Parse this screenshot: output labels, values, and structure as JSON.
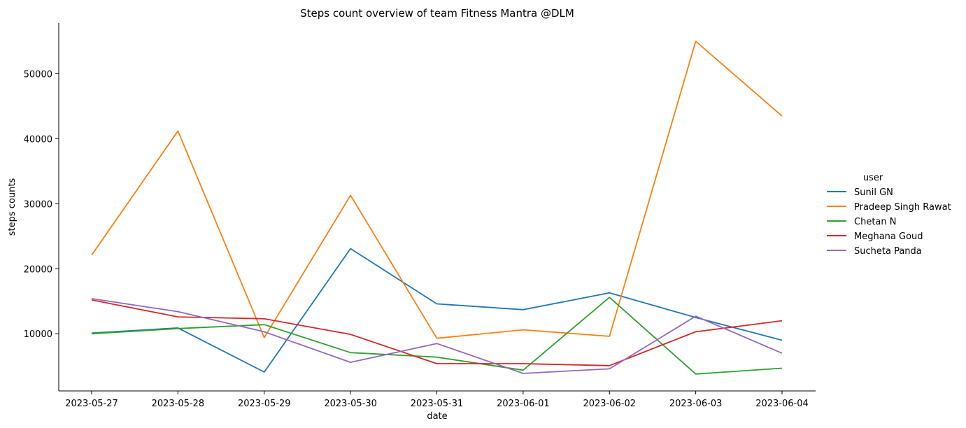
{
  "chart_data": {
    "type": "line",
    "title": "Steps count overview of team Fitness Mantra @DLM",
    "xlabel": "date",
    "ylabel": "steps counts",
    "x": [
      "2023-05-27",
      "2023-05-28",
      "2023-05-29",
      "2023-05-30",
      "2023-05-31",
      "2023-06-01",
      "2023-06-02",
      "2023-06-03",
      "2023-06-04"
    ],
    "ylim": [
      1200,
      57800
    ],
    "yticks": [
      10000,
      20000,
      30000,
      40000,
      50000
    ],
    "grid": false,
    "legend_title": "user",
    "legend_position": "right",
    "series": [
      {
        "name": "Sunil GN",
        "color": "#1f77b4",
        "values": [
          10100,
          10900,
          4100,
          23100,
          14600,
          13700,
          16300,
          12500,
          9000
        ]
      },
      {
        "name": "Pradeep Singh Rawat",
        "color": "#ff7f0e",
        "values": [
          22100,
          41200,
          9400,
          31300,
          9300,
          10600,
          9600,
          55000,
          43500
        ]
      },
      {
        "name": "Chetan N",
        "color": "#2ca02c",
        "values": [
          10000,
          10800,
          11400,
          7100,
          6400,
          4400,
          15600,
          3800,
          4700
        ]
      },
      {
        "name": "Meghana Goud",
        "color": "#d62728",
        "values": [
          15200,
          12600,
          12300,
          9900,
          5400,
          5400,
          5100,
          10300,
          12000
        ]
      },
      {
        "name": "Sucheta Panda",
        "color": "#9467bd",
        "values": [
          15400,
          13400,
          10300,
          5600,
          8500,
          3900,
          4600,
          12700,
          7000
        ]
      }
    ]
  }
}
